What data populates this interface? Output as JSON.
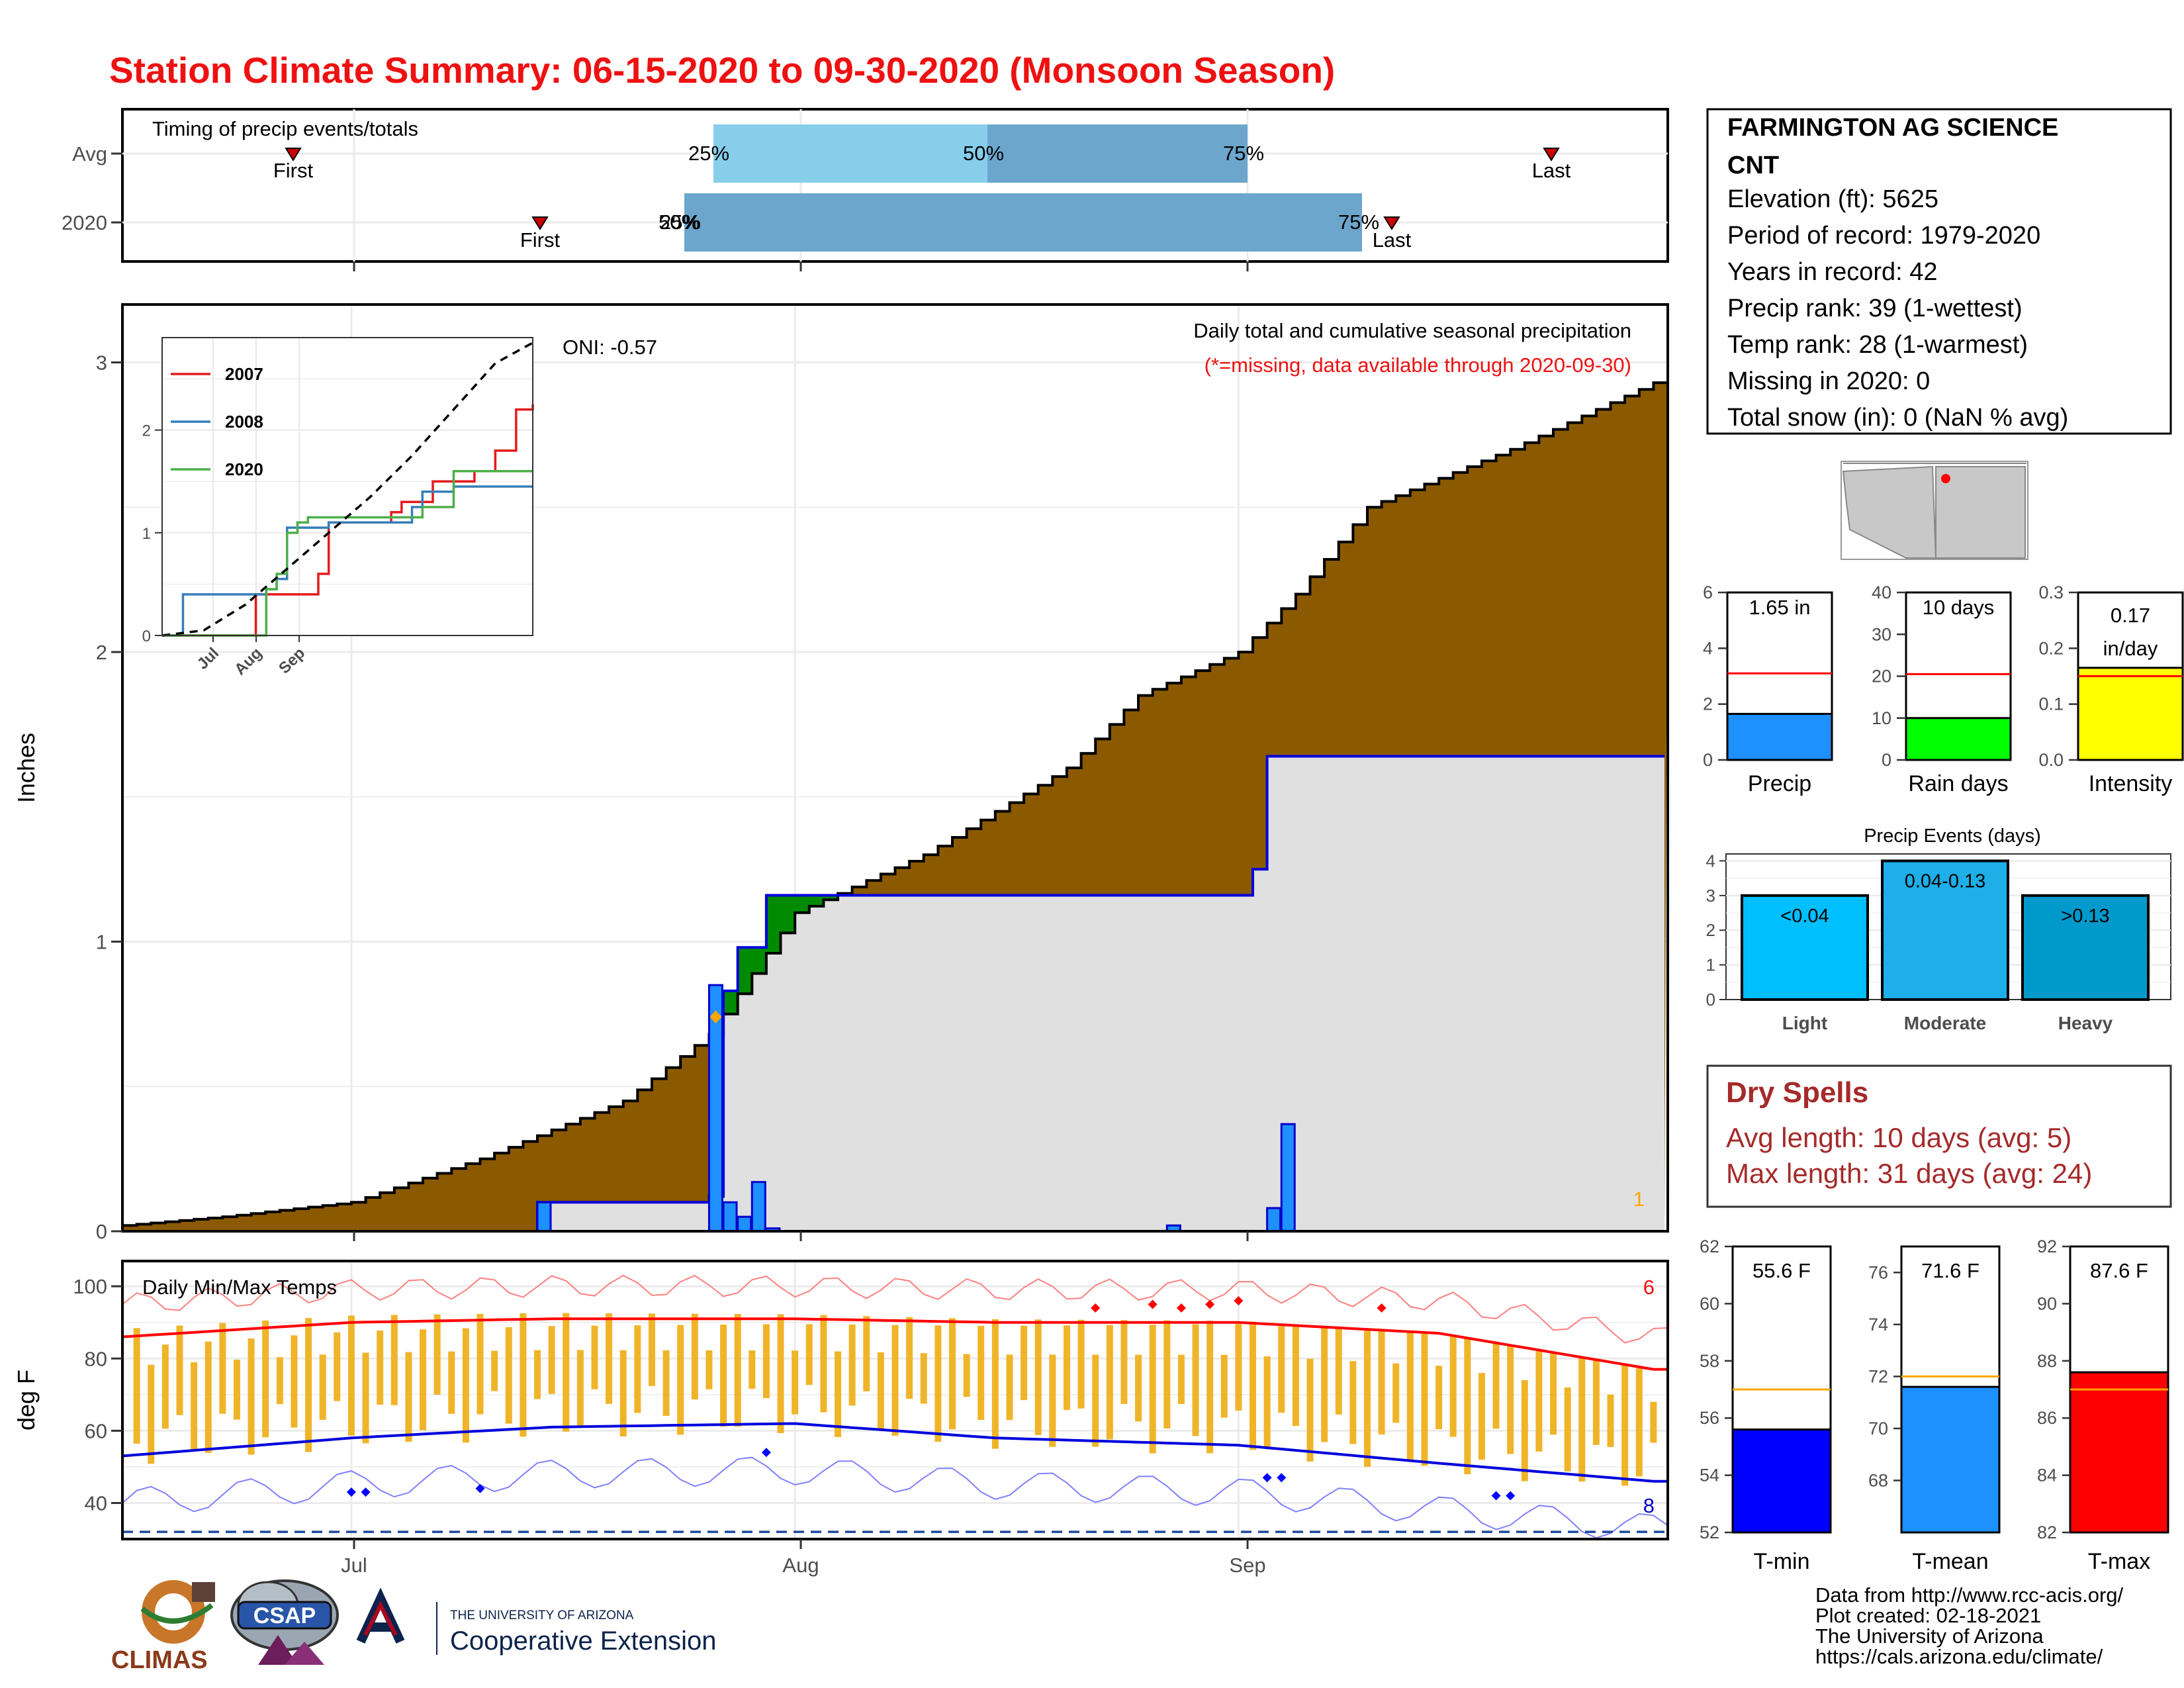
{
  "title": "Station Climate Summary: 06-15-2020 to 09-30-2020 (Monsoon Season)",
  "timing_panel": {
    "label": "Timing of precip events/totals",
    "rows": [
      "Avg",
      "2020"
    ],
    "avg": {
      "first": "First",
      "last": "Last",
      "p25": "25%",
      "p50": "50%",
      "p75": "75%"
    },
    "y2020": {
      "first": "First",
      "last": "Last",
      "p25": "25%",
      "p50": "50%",
      "p75": "75%"
    }
  },
  "precip_panel": {
    "title": "Daily total and cumulative seasonal precipitation",
    "missing_note": "(*=missing, data available through 2020-09-30)",
    "ylabel": "Inches",
    "oni": "ONI: -0.57",
    "count_label": "1"
  },
  "inset": {
    "legend": [
      "2007",
      "2008",
      "2020"
    ],
    "colors": {
      "2007": "#e41a1c",
      "2008": "#377eb8",
      "2020": "#4daf4a"
    },
    "y_ticks": [
      "0",
      "1",
      "2"
    ],
    "x_ticks": [
      "Jul",
      "Aug",
      "Sep"
    ]
  },
  "temp_panel": {
    "label": "Daily Min/Max Temps",
    "ylabel": "deg F",
    "y_ticks": [
      "40",
      "60",
      "80",
      "100"
    ],
    "x_ticks": [
      "Jul",
      "Aug",
      "Sep"
    ],
    "count_high": "6",
    "count_low": "8"
  },
  "station": {
    "name_line1": "FARMINGTON AG SCIENCE",
    "name_line2": "CNT",
    "elevation": "Elevation (ft): 5625",
    "period": "Period of record: 1979-2020",
    "years": "Years in record: 42",
    "precip_rank": "Precip rank: 39 (1-wettest)",
    "temp_rank": "Temp rank: 28 (1-warmest)",
    "missing": "Missing in 2020: 0",
    "snow": "Total snow (in): 0 (NaN % avg)"
  },
  "mini_bars": [
    {
      "label": "Precip",
      "value_text": "1.65 in",
      "value": 1.65,
      "avg": 3.1,
      "max": 6,
      "ticks": [
        "0",
        "2",
        "4",
        "6"
      ],
      "color": "#1e90ff"
    },
    {
      "label": "Rain days",
      "value_text": "10 days",
      "value": 10,
      "avg": 20.5,
      "max": 40,
      "ticks": [
        "0",
        "10",
        "20",
        "30",
        "40"
      ],
      "color": "#00ff00"
    },
    {
      "label": "Intensity",
      "value_text": "0.17 in/day",
      "value": 0.165,
      "avg": 0.15,
      "max": 0.3,
      "ticks": [
        "0.0",
        "0.1",
        "0.2",
        "0.3"
      ],
      "color": "#ffff00"
    }
  ],
  "precip_events": {
    "title": "Precip Events (days)",
    "y_ticks": [
      "0",
      "1",
      "2",
      "3",
      "4"
    ],
    "bars": [
      {
        "label": "Light",
        "range": "<0.04",
        "value": 3,
        "color": "#00bfff"
      },
      {
        "label": "Moderate",
        "range": "0.04-0.13",
        "value": 4,
        "color": "#1eaee8"
      },
      {
        "label": "Heavy",
        "range": ">0.13",
        "value": 3,
        "color": "#0099cc"
      }
    ]
  },
  "dry_spells": {
    "title": "Dry Spells",
    "avg": "Avg length: 10 days (avg: 5)",
    "max": "Max length: 31 days (avg: 24)"
  },
  "temp_bars": [
    {
      "label": "T-min",
      "value_text": "55.6 F",
      "value": 55.6,
      "avg": 57,
      "ymin": 52,
      "ymax": 62,
      "ticks": [
        "52",
        "54",
        "56",
        "58",
        "60",
        "62"
      ],
      "color": "#0000ff"
    },
    {
      "label": "T-mean",
      "value_text": "71.6 F",
      "value": 71.6,
      "avg": 72,
      "ymin": 66,
      "ymax": 77,
      "ticks": [
        "68",
        "70",
        "72",
        "74",
        "76"
      ],
      "color": "#1e90ff"
    },
    {
      "label": "T-max",
      "value_text": "87.6 F",
      "value": 87.6,
      "avg": 87,
      "ymin": 82,
      "ymax": 92,
      "ticks": [
        "82",
        "84",
        "86",
        "88",
        "90",
        "92"
      ],
      "color": "#ff0000"
    }
  ],
  "footer": {
    "line1": "Data from http://www.rcc-acis.org/",
    "line2": "Plot created: 02-18-2021",
    "line3": "The University of Arizona",
    "line4": "https://cals.arizona.edu/climate/"
  },
  "logos": {
    "climas": "CLIMAS",
    "csap": "CSAP",
    "ua_top": "THE UNIVERSITY OF ARIZONA",
    "ua_bottom": "Cooperative Extension"
  },
  "chart_data": [
    {
      "type": "area",
      "title": "Daily total and cumulative seasonal precipitation",
      "ylabel": "Inches",
      "ylim": [
        0,
        3.2
      ],
      "x_range": [
        "2020-06-15",
        "2020-09-30"
      ],
      "series": [
        {
          "name": "2020",
          "x": [
            "2020-06-15",
            "2020-07-14",
            "2020-07-26",
            "2020-07-27",
            "2020-07-28",
            "2020-07-30",
            "2020-08-30",
            "2020-09-02",
            "2020-09-03",
            "2020-09-30"
          ],
          "y": [
            0,
            0.1,
            0.12,
            0.83,
            0.98,
            1.16,
            1.16,
            1.25,
            1.64,
            1.64
          ]
        },
        {
          "x": [
            "2020-06-15",
            "2020-06-22",
            "2020-07-01",
            "2020-07-10",
            "2020-07-20",
            "2020-07-26",
            "2020-08-01",
            "2020-08-10",
            "2020-08-20",
            "2020-08-25",
            "2020-09-01",
            "2020-09-05",
            "2020-09-10",
            "2020-09-20",
            "2020-09-30"
          ],
          "y": [
            0.02,
            0.05,
            0.1,
            0.25,
            0.45,
            0.68,
            1.1,
            1.3,
            1.6,
            1.85,
            2.0,
            2.2,
            2.5,
            2.7,
            2.93
          ]
        }
      ],
      "daily_bars": {
        "dates": [
          "2020-07-14",
          "2020-07-26",
          "2020-07-27",
          "2020-07-28",
          "2020-07-29",
          "2020-07-30",
          "2020-08-27",
          "2020-09-03",
          "2020-09-04"
        ],
        "values": [
          0.1,
          0.85,
          0.1,
          0.05,
          0.17,
          0.01,
          0.02,
          0.08,
          0.37
        ]
      }
    },
    {
      "type": "line",
      "title": "",
      "x_ticks": [
        "Jul",
        "Aug",
        "Sep"
      ],
      "ylim": [
        0,
        2.9
      ],
      "series": [
        {
          "name": "2007",
          "x": [
            0,
            40,
            45,
            60,
            75,
            80,
            85,
            110,
            115,
            130,
            150,
            160,
            170,
            178
          ],
          "y": [
            0,
            0,
            0.4,
            0.4,
            0.6,
            1.1,
            1.1,
            1.2,
            1.3,
            1.5,
            1.6,
            1.8,
            2.2,
            2.25
          ]
        },
        {
          "name": "2008",
          "x": [
            0,
            10,
            30,
            50,
            55,
            60,
            80,
            120,
            125,
            140,
            178
          ],
          "y": [
            0,
            0.4,
            0.4,
            0.45,
            0.55,
            1.05,
            1.1,
            1.25,
            1.4,
            1.45,
            1.45
          ]
        },
        {
          "name": "2020",
          "x": [
            0,
            45,
            50,
            55,
            60,
            65,
            70,
            120,
            125,
            140,
            178
          ],
          "y": [
            0,
            0,
            0.45,
            0.6,
            1.0,
            1.1,
            1.15,
            1.15,
            1.25,
            1.6,
            1.6
          ]
        },
        {
          "x": [
            0,
            20,
            40,
            60,
            80,
            100,
            120,
            140,
            160,
            178
          ],
          "y": [
            0,
            0.05,
            0.3,
            0.65,
            1.0,
            1.35,
            1.75,
            2.2,
            2.65,
            2.85
          ]
        }
      ]
    },
    {
      "type": "line",
      "title": "Daily Min/Max Temps",
      "ylabel": "deg F",
      "ylim": [
        30,
        107
      ],
      "x_ticks": [
        "Jul",
        "Aug",
        "Sep"
      ],
      "series": [
        {
          "x": [
            "06-15",
            "07-01",
            "07-15",
            "08-01",
            "08-15",
            "09-01",
            "09-15",
            "09-30"
          ],
          "y": [
            86,
            90,
            91,
            91,
            90,
            90,
            87,
            77
          ]
        },
        {
          "x": [
            "06-15",
            "07-01",
            "07-15",
            "08-01",
            "08-15",
            "09-01",
            "09-15",
            "09-30"
          ],
          "y": [
            53,
            58,
            61,
            62,
            58,
            56,
            51,
            46
          ]
        }
      ]
    }
  ]
}
